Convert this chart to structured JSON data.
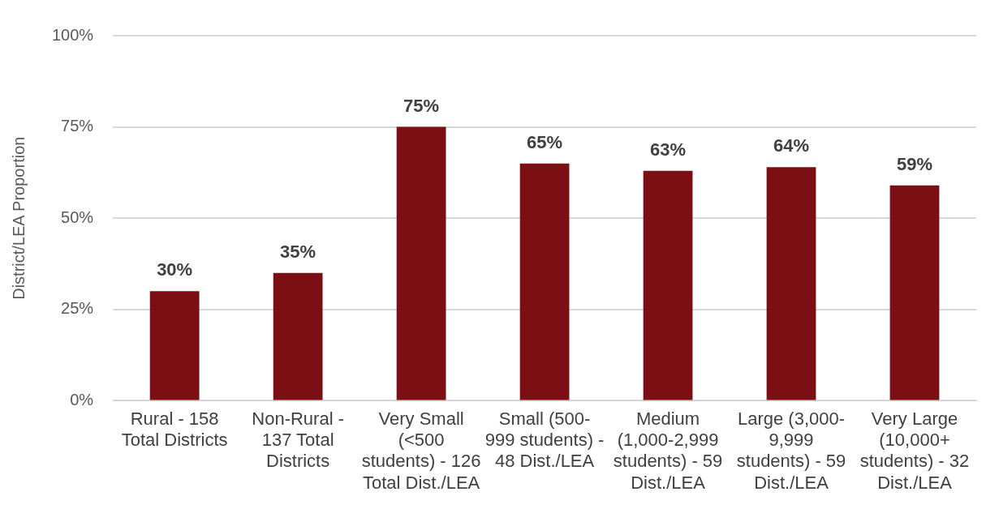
{
  "chart_data": {
    "type": "bar",
    "ylabel": "District/LEA Proportion",
    "categories": [
      "Rural - 158 Total Districts",
      "Non-Rural - 137 Total Districts",
      "Very Small (<500 students) - 126 Total Dist./LEA",
      "Small (500-999 students) - 48 Dist./LEA",
      "Medium (1,000-2,999 students) - 59 Dist./LEA",
      "Large (3,000-9,999 students) - 59 Dist./LEA",
      "Very Large (10,000+ students) - 32 Dist./LEA"
    ],
    "values": [
      30,
      35,
      75,
      65,
      63,
      64,
      59
    ],
    "value_labels": [
      "30%",
      "35%",
      "75%",
      "65%",
      "63%",
      "64%",
      "59%"
    ],
    "color": "#7b0f14",
    "ylim": [
      0,
      100
    ],
    "yticks": [
      {
        "value": 0,
        "label": "0%"
      },
      {
        "value": 25,
        "label": "25%"
      },
      {
        "value": 50,
        "label": "50%"
      },
      {
        "value": 75,
        "label": "75%"
      },
      {
        "value": 100,
        "label": "100%"
      }
    ],
    "grid": "y",
    "legend": false
  }
}
